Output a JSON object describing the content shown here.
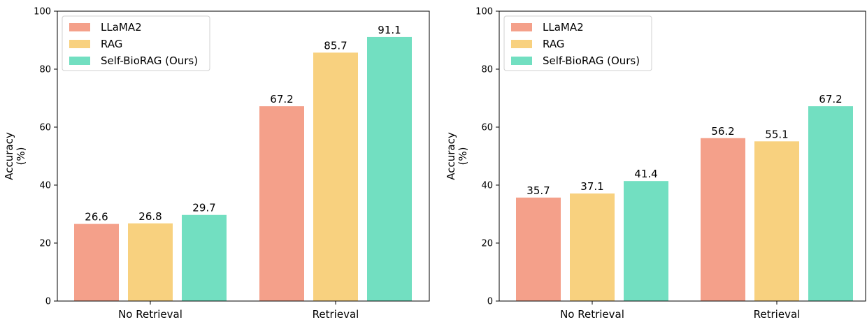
{
  "chart_data": [
    {
      "type": "bar",
      "categories": [
        "No Retrieval",
        "Retrieval"
      ],
      "series": [
        {
          "name": "LLaMA2",
          "color": "#F4A08A",
          "values": [
            26.6,
            67.2
          ]
        },
        {
          "name": "RAG",
          "color": "#F8D17F",
          "values": [
            26.8,
            85.7
          ]
        },
        {
          "name": "Self-BioRAG (Ours)",
          "color": "#72DFC1",
          "values": [
            29.7,
            91.1
          ]
        }
      ],
      "value_labels": [
        [
          "26.6",
          "67.2"
        ],
        [
          "26.8",
          "85.7"
        ],
        [
          "29.7",
          "91.1"
        ]
      ],
      "ylabel": "Accuracy\n(%)",
      "ylabel_lines": [
        "Accuracy",
        "(%)"
      ],
      "ylim": [
        0,
        100
      ],
      "yticks": [
        "0",
        "20",
        "40",
        "60",
        "80",
        "100"
      ],
      "legend": "top-left",
      "grid": false
    },
    {
      "type": "bar",
      "categories": [
        "No Retrieval",
        "Retrieval"
      ],
      "series": [
        {
          "name": "LLaMA2",
          "color": "#F4A08A",
          "values": [
            35.7,
            56.2
          ]
        },
        {
          "name": "RAG",
          "color": "#F8D17F",
          "values": [
            37.1,
            55.1
          ]
        },
        {
          "name": "Self-BioRAG (Ours)",
          "color": "#72DFC1",
          "values": [
            41.4,
            67.2
          ]
        }
      ],
      "value_labels": [
        [
          "35.7",
          "56.2"
        ],
        [
          "37.1",
          "55.1"
        ],
        [
          "41.4",
          "67.2"
        ]
      ],
      "ylabel": "Accuracy\n(%)",
      "ylabel_lines": [
        "Accuracy",
        "(%)"
      ],
      "ylim": [
        0,
        100
      ],
      "yticks": [
        "0",
        "20",
        "40",
        "60",
        "80",
        "100"
      ],
      "legend": "top-left",
      "grid": false
    }
  ]
}
